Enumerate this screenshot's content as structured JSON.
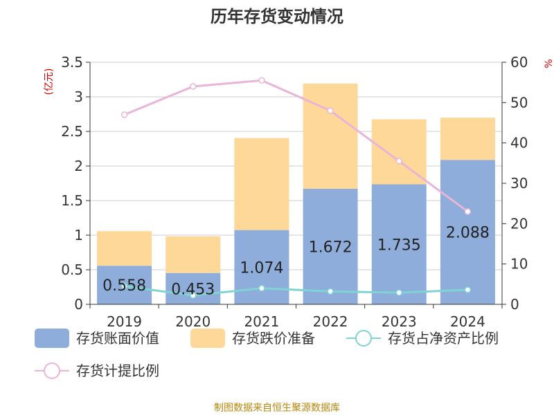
{
  "chart_data": {
    "type": "bar",
    "title": "历年存货变动情况",
    "categories": [
      "2019",
      "2020",
      "2021",
      "2022",
      "2023",
      "2024"
    ],
    "left_axis": {
      "unit_label": "(亿元)",
      "ylim": [
        0,
        3.5
      ],
      "ticks": [
        "0",
        "0.5",
        "1",
        "1.5",
        "2",
        "2.5",
        "3",
        "3.5"
      ]
    },
    "right_axis": {
      "unit_label": "%",
      "ylim": [
        0,
        60
      ],
      "ticks": [
        "0",
        "10",
        "20",
        "30",
        "40",
        "50",
        "60"
      ]
    },
    "series": [
      {
        "name": "存货账面价值",
        "kind": "bar",
        "stack": "total",
        "axis": "left",
        "color": "#8eadda",
        "values": [
          0.558,
          0.453,
          1.074,
          1.672,
          1.735,
          2.088
        ],
        "labels": [
          "0.558",
          "0.453",
          "1.074",
          "1.672",
          "1.735",
          "2.088"
        ]
      },
      {
        "name": "存货跌价准备",
        "kind": "bar",
        "stack": "total",
        "axis": "left",
        "color": "#fdd898",
        "values": [
          0.5,
          0.53,
          1.33,
          1.52,
          0.94,
          0.61
        ]
      },
      {
        "name": "存货占净资产比例",
        "kind": "line",
        "axis": "right",
        "color": "#7fd3d3",
        "values": [
          4.5,
          2.2,
          4.0,
          3.2,
          2.9,
          3.6
        ]
      },
      {
        "name": "存货计提比例",
        "kind": "line",
        "axis": "right",
        "color": "#e8b4d8",
        "values": [
          47,
          54,
          55.5,
          48,
          35.5,
          23
        ]
      }
    ],
    "grid": true,
    "legend_position": "bottom"
  },
  "footer": {
    "source": "制图数据来自恒生聚源数据库"
  }
}
